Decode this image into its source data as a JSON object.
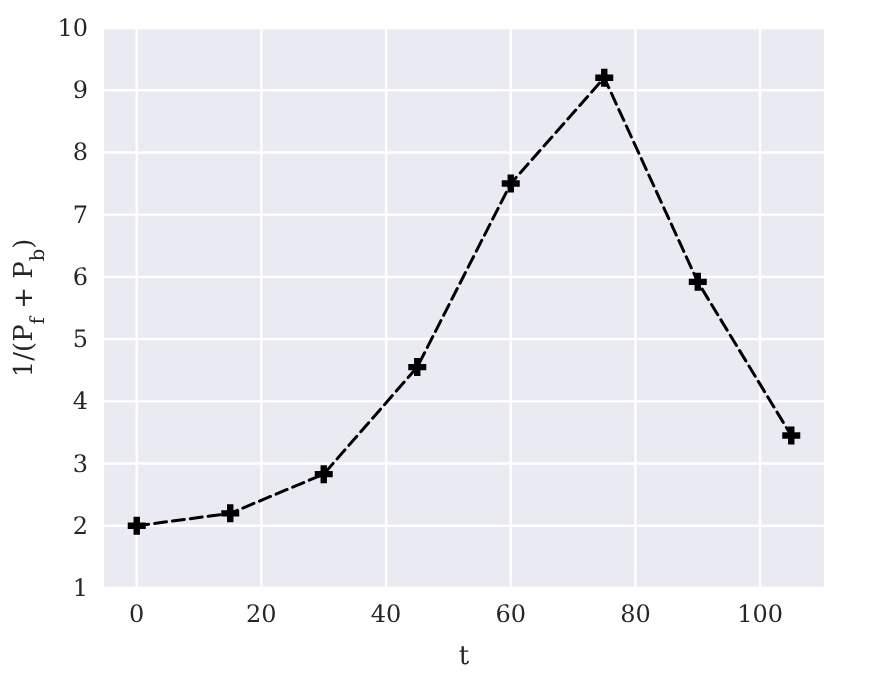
{
  "chart_data": {
    "type": "line",
    "xlabel": "t",
    "ylabel": "1/(P$_{f}$ + P$_{b}$)",
    "x": [
      0,
      15,
      30,
      45,
      60,
      75,
      90,
      105
    ],
    "series": [
      {
        "color": "#000000",
        "values": [
          2,
          2.2,
          2.83,
          4.55,
          7.5,
          9.2,
          5.92,
          3.45
        ]
      }
    ],
    "xlim": [
      -5.25,
      110.25
    ],
    "xticks": [
      0,
      20,
      40,
      60,
      80,
      100
    ],
    "ylim": [
      1,
      10
    ],
    "yticks": [
      1,
      2,
      3,
      4,
      5,
      6,
      7,
      8,
      9,
      10
    ],
    "grid": true,
    "marker": "cross",
    "line_style": "dashed"
  }
}
